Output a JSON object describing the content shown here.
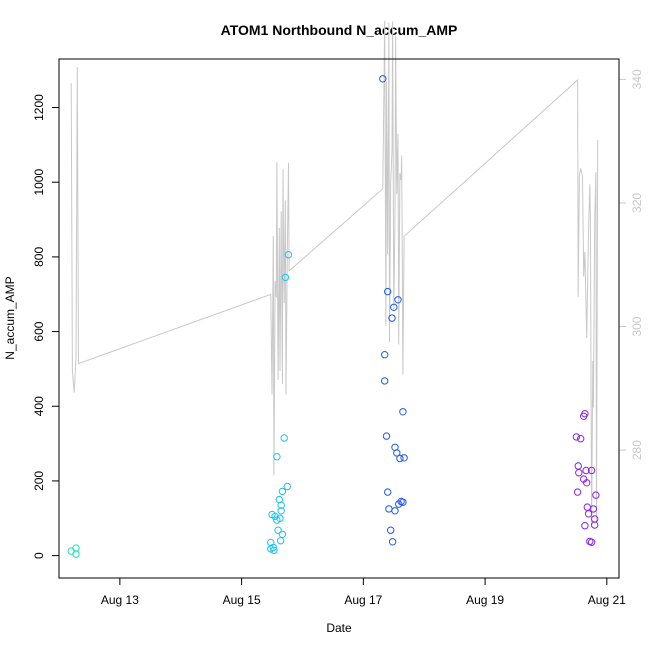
{
  "chart_data": {
    "type": "scatter",
    "title": "ATOM1 Northbound N_accum_AMP",
    "xlabel": "Date",
    "ylabel": "N_accum_AMP",
    "x_ticks": [
      "Aug 13",
      "Aug 15",
      "Aug 17",
      "Aug 19",
      "Aug 21"
    ],
    "x_tick_values": [
      13,
      15,
      17,
      19,
      21
    ],
    "xlim": [
      12.0,
      21.2
    ],
    "y_ticks": [
      0,
      200,
      400,
      600,
      800,
      1000,
      1200
    ],
    "ylim": [
      -60,
      1330
    ],
    "y2_ticks": [
      280,
      300,
      320,
      340
    ],
    "y2lim": [
      259.3,
      343.3
    ],
    "secondary_line_color": "#c8c8c8",
    "grid": false,
    "legend": "none",
    "series": [
      {
        "color": "#1fe0b4",
        "points": [
          [
            12.2,
            12
          ],
          [
            12.28,
            4
          ],
          [
            12.28,
            20
          ]
        ]
      },
      {
        "color": "#1fc2ef",
        "points": [
          [
            15.48,
            18
          ],
          [
            15.48,
            35
          ],
          [
            15.5,
            110
          ],
          [
            15.52,
            22
          ],
          [
            15.53,
            14
          ],
          [
            15.55,
            105
          ],
          [
            15.58,
            265
          ],
          [
            15.58,
            95
          ],
          [
            15.6,
            68
          ],
          [
            15.62,
            150
          ],
          [
            15.63,
            100
          ],
          [
            15.64,
            40
          ],
          [
            15.65,
            135
          ],
          [
            15.65,
            120
          ],
          [
            15.67,
            172
          ],
          [
            15.67,
            57
          ],
          [
            15.7,
            315
          ],
          [
            15.72,
            745
          ],
          [
            15.75,
            185
          ],
          [
            15.77,
            806
          ]
        ]
      },
      {
        "color": "#1f58ee",
        "points": [
          [
            17.32,
            1277
          ],
          [
            17.35,
            538
          ],
          [
            17.35,
            468
          ],
          [
            17.38,
            320
          ],
          [
            17.4,
            707
          ],
          [
            17.4,
            170
          ],
          [
            17.42,
            125
          ],
          [
            17.45,
            68
          ],
          [
            17.47,
            636
          ],
          [
            17.48,
            37
          ],
          [
            17.5,
            665
          ],
          [
            17.52,
            120
          ],
          [
            17.52,
            290
          ],
          [
            17.55,
            275
          ],
          [
            17.57,
            685
          ],
          [
            17.58,
            138
          ],
          [
            17.6,
            260
          ],
          [
            17.62,
            145
          ],
          [
            17.65,
            143
          ],
          [
            17.65,
            385
          ],
          [
            17.67,
            262
          ]
        ]
      },
      {
        "color": "#8a22e6",
        "points": [
          [
            20.5,
            318
          ],
          [
            20.52,
            170
          ],
          [
            20.53,
            240
          ],
          [
            20.54,
            222
          ],
          [
            20.57,
            313
          ],
          [
            20.62,
            373
          ],
          [
            20.62,
            205
          ],
          [
            20.64,
            380
          ],
          [
            20.64,
            80
          ],
          [
            20.66,
            228
          ],
          [
            20.67,
            195
          ],
          [
            20.68,
            130
          ],
          [
            20.7,
            112
          ],
          [
            20.72,
            38
          ],
          [
            20.75,
            228
          ],
          [
            20.75,
            36
          ],
          [
            20.78,
            125
          ],
          [
            20.8,
            98
          ],
          [
            20.8,
            82
          ],
          [
            20.82,
            162
          ]
        ]
      }
    ],
    "line_series": {
      "color": "#c8c8c8",
      "points": [
        [
          12.2,
          339.4
        ],
        [
          12.22,
          292.8
        ],
        [
          12.25,
          289.3
        ],
        [
          12.28,
          294.8
        ],
        [
          12.3,
          342.0
        ],
        [
          12.32,
          294.0
        ],
        [
          15.48,
          305.2
        ],
        [
          15.5,
          289.0
        ],
        [
          15.52,
          314.7
        ],
        [
          15.53,
          275.9
        ],
        [
          15.55,
          307.4
        ],
        [
          15.57,
          304.7
        ],
        [
          15.58,
          326.6
        ],
        [
          15.6,
          291.4
        ],
        [
          15.62,
          316.0
        ],
        [
          15.63,
          292.8
        ],
        [
          15.65,
          318.6
        ],
        [
          15.67,
          290.7
        ],
        [
          15.68,
          325.5
        ],
        [
          15.7,
          303.8
        ],
        [
          15.72,
          320.4
        ],
        [
          15.73,
          289.0
        ],
        [
          15.75,
          312.0
        ],
        [
          15.77,
          326.5
        ],
        [
          15.78,
          309.0
        ],
        [
          17.32,
          322.3
        ],
        [
          17.35,
          349.5
        ],
        [
          17.37,
          300.1
        ],
        [
          17.38,
          339.7
        ],
        [
          17.4,
          311.7
        ],
        [
          17.42,
          349.2
        ],
        [
          17.43,
          297.5
        ],
        [
          17.45,
          323.3
        ],
        [
          17.47,
          328.5
        ],
        [
          17.48,
          349.4
        ],
        [
          17.5,
          302.5
        ],
        [
          17.52,
          317.8
        ],
        [
          17.53,
          347.0
        ],
        [
          17.55,
          321.4
        ],
        [
          17.57,
          331.2
        ],
        [
          17.58,
          297.1
        ],
        [
          17.6,
          324.8
        ],
        [
          17.62,
          323.7
        ],
        [
          17.63,
          327.7
        ],
        [
          17.65,
          292.2
        ],
        [
          17.67,
          314.6
        ],
        [
          20.52,
          339.9
        ],
        [
          20.53,
          304.8
        ],
        [
          20.55,
          324.5
        ],
        [
          20.57,
          325.6
        ],
        [
          20.6,
          324.2
        ],
        [
          20.62,
          308.1
        ],
        [
          20.64,
          312.1
        ],
        [
          20.67,
          298.2
        ],
        [
          20.7,
          315.7
        ],
        [
          20.72,
          323.0
        ],
        [
          20.73,
          317.7
        ],
        [
          20.75,
          267.5
        ],
        [
          20.77,
          294.4
        ],
        [
          20.78,
          286.9
        ],
        [
          20.8,
          317.1
        ],
        [
          20.82,
          325.0
        ],
        [
          20.83,
          268.3
        ],
        [
          20.85,
          330.2
        ]
      ]
    }
  }
}
